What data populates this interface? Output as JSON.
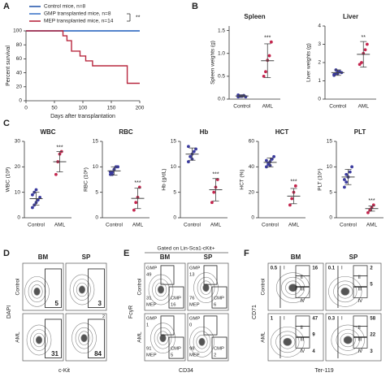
{
  "panel_labels": [
    "A",
    "B",
    "C",
    "D",
    "E",
    "F"
  ],
  "chart_data": [
    {
      "type": "survival",
      "y_label": "Percent survival",
      "x_label": "Days after transplantation",
      "xlim": [
        0,
        200
      ],
      "xticks": [
        0,
        50,
        100,
        150,
        200
      ],
      "ylim": [
        0,
        100
      ],
      "yticks": [
        0,
        20,
        40,
        60,
        80,
        100
      ],
      "significance": "**",
      "series": [
        {
          "name": "Control mice, n=8",
          "color": "#2b5cae",
          "x": [
            0,
            200
          ],
          "values": [
            100,
            100
          ]
        },
        {
          "name": "GMP transplanted mice, n=8",
          "color": "#3f76c9",
          "x": [
            0,
            200
          ],
          "values": [
            100,
            100
          ]
        },
        {
          "name": "MEP transplanted mice, n=14",
          "color": "#b8283f",
          "x": [
            0,
            65,
            65,
            72,
            72,
            80,
            80,
            95,
            95,
            105,
            105,
            117,
            117,
            178,
            178,
            200
          ],
          "values": [
            100,
            100,
            93,
            93,
            86,
            86,
            71,
            71,
            64,
            64,
            57,
            57,
            50,
            50,
            25,
            25
          ]
        }
      ]
    },
    {
      "type": "dot",
      "title": "Spleen",
      "y_label": "Spleen weights (g)",
      "categories": [
        "Control",
        "AML"
      ],
      "ylim": [
        0,
        1.6
      ],
      "yticks": [
        {
          "value": 0,
          "label": "0.0"
        },
        0.5,
        {
          "value": 1,
          "label": "1.0"
        },
        1.5
      ],
      "groups": [
        {
          "color": "#3a3a9e",
          "values": [
            0.05,
            0.06,
            0.07,
            0.08,
            0.05,
            0.09,
            0.07,
            0.06
          ],
          "mean": 0.07,
          "sd": 0.02
        },
        {
          "color": "#c4264e",
          "values": [
            0.5,
            0.6,
            0.85,
            0.95,
            1.25
          ],
          "mean": 0.84,
          "sd": 0.37,
          "significance": "***"
        }
      ]
    },
    {
      "type": "dot",
      "title": "Liver",
      "y_label": "Liver weights (g)",
      "categories": [
        "Control",
        "AML"
      ],
      "ylim": [
        0,
        4
      ],
      "yticks": [
        0,
        1,
        2,
        3,
        4
      ],
      "groups": [
        {
          "color": "#3a3a9e",
          "values": [
            1.3,
            1.4,
            1.5,
            1.5,
            1.45,
            1.35,
            1.6,
            1.4
          ],
          "mean": 1.45,
          "sd": 0.15
        },
        {
          "color": "#c4264e",
          "values": [
            1.9,
            2.0,
            2.5,
            2.7,
            3.0
          ],
          "mean": 2.45,
          "sd": 0.7,
          "significance": "**"
        }
      ]
    },
    {
      "type": "dot",
      "title": "WBC",
      "y_label": "WBC (10³)",
      "categories": [
        "Control",
        "AML"
      ],
      "ylim": [
        0,
        30
      ],
      "yticks": [
        0,
        10,
        20,
        30
      ],
      "groups": [
        {
          "color": "#3a3a9e",
          "values": [
            4,
            5,
            6,
            7,
            8,
            9,
            10,
            11
          ],
          "mean": 7.5,
          "sd": 2.5
        },
        {
          "color": "#c4264e",
          "values": [
            17,
            22,
            25,
            26
          ],
          "mean": 22,
          "sd": 4,
          "significance": "***"
        }
      ]
    },
    {
      "type": "dot",
      "title": "RBC",
      "y_label": "RBC (10⁶)",
      "categories": [
        "Control",
        "AML"
      ],
      "ylim": [
        0,
        15
      ],
      "yticks": [
        0,
        5,
        10,
        15
      ],
      "groups": [
        {
          "color": "#3a3a9e",
          "values": [
            8.5,
            9,
            9.5,
            10,
            10,
            9,
            8.5,
            9.5
          ],
          "mean": 9.2,
          "sd": 0.8
        },
        {
          "color": "#c4264e",
          "values": [
            1.5,
            3,
            4,
            6
          ],
          "mean": 3.8,
          "sd": 2,
          "significance": "***"
        }
      ]
    },
    {
      "type": "dot",
      "title": "Hb",
      "y_label": "Hb (g/dL)",
      "categories": [
        "Control",
        "AML"
      ],
      "ylim": [
        0,
        15
      ],
      "yticks": [
        0,
        5,
        10,
        15
      ],
      "groups": [
        {
          "color": "#3a3a9e",
          "values": [
            11,
            12,
            12.5,
            13,
            13.5,
            14,
            12,
            11.5
          ],
          "mean": 12.5,
          "sd": 1.2
        },
        {
          "color": "#c4264e",
          "values": [
            3,
            5,
            6,
            7.5
          ],
          "mean": 5.5,
          "sd": 2.2,
          "significance": "***"
        }
      ]
    },
    {
      "type": "dot",
      "title": "HCT",
      "y_label": "HCT (%)",
      "categories": [
        "Control",
        "AML"
      ],
      "ylim": [
        0,
        60
      ],
      "yticks": [
        0,
        20,
        40,
        60
      ],
      "groups": [
        {
          "color": "#3a3a9e",
          "values": [
            40,
            42,
            44,
            46,
            48,
            45,
            43,
            41
          ],
          "mean": 43.5,
          "sd": 3.5
        },
        {
          "color": "#c4264e",
          "values": [
            10,
            15,
            20,
            25
          ],
          "mean": 17,
          "sd": 6,
          "significance": "***"
        }
      ]
    },
    {
      "type": "dot",
      "title": "PLT",
      "y_label": "PLT (10⁵)",
      "categories": [
        "Control",
        "AML"
      ],
      "ylim": [
        0,
        15
      ],
      "yticks": [
        0,
        5,
        10,
        15
      ],
      "groups": [
        {
          "color": "#3a3a9e",
          "values": [
            6,
            7,
            8,
            9,
            10,
            7.5,
            8.5,
            8
          ],
          "mean": 8,
          "sd": 1.5
        },
        {
          "color": "#c4264e",
          "values": [
            1,
            1.5,
            2,
            2.5
          ],
          "mean": 1.8,
          "sd": 0.5,
          "significance": "***"
        }
      ]
    }
  ],
  "flow_panels": [
    {
      "columns": [
        "BM",
        "SP"
      ],
      "rows": [
        "Control",
        "AML"
      ],
      "y_label": "DAPI",
      "x_label": "c-Kit",
      "cells": [
        [
          {
            "labels": [
              "5"
            ]
          },
          {
            "labels": [
              "3"
            ]
          }
        ],
        [
          {
            "labels": [
              "31"
            ]
          },
          {
            "labels": [
              "2",
              "84"
            ]
          }
        ]
      ]
    },
    {
      "gate_note": "Gated on Lin-Sca1-cKit+",
      "columns": [
        "BM",
        "SP"
      ],
      "rows": [
        "Control",
        "AML"
      ],
      "y_label": "FcγR",
      "x_label": "CD34",
      "cells": [
        [
          {
            "labels": [
              "GMP",
              "49",
              "31",
              "MEP",
              "CMP",
              "16"
            ]
          },
          {
            "labels": [
              "GMP",
              "13",
              "76",
              "MEP",
              "CMP",
              "6"
            ]
          }
        ],
        [
          {
            "labels": [
              "GMP",
              "1",
              "91",
              "MEP",
              "CMP",
              "5"
            ]
          },
          {
            "labels": [
              "GMP",
              "0",
              "98",
              "MEP",
              "CMP",
              "2"
            ]
          }
        ]
      ]
    },
    {
      "columns": [
        "BM",
        "SP"
      ],
      "rows": [
        "Control",
        "AML"
      ],
      "y_label": "CD71",
      "x_label": "Ter-119",
      "cells": [
        [
          {
            "labels": [
              "0.5",
              "16",
              "I",
              "II",
              "III",
              "IV"
            ]
          },
          {
            "labels": [
              "0.1",
              "2",
              "5",
              "I",
              "II",
              "III",
              "IV"
            ]
          }
        ],
        [
          {
            "labels": [
              "1",
              "47",
              "9",
              "4",
              "I",
              "II",
              "III",
              "IV"
            ]
          },
          {
            "labels": [
              "0.3",
              "58",
              "22",
              "3",
              "I",
              "II",
              "III",
              "IV"
            ]
          }
        ]
      ]
    }
  ]
}
